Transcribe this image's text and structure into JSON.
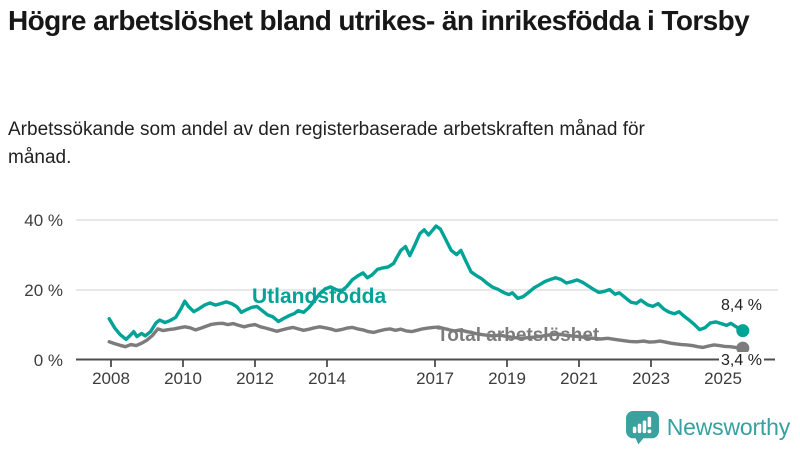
{
  "header": {
    "title": "Högre arbetslöshet bland utrikes- än inrikesfödda i Torsby",
    "subtitle": "Arbetssökande som andel av den registerbaserade arbetskraften månad för månad."
  },
  "chart_data": {
    "type": "line",
    "title": "Högre arbetslöshet bland utrikes- än inrikesfödda i Torsby",
    "xlabel": "",
    "ylabel": "",
    "grid": "horizontal",
    "legend_position": "inline-annotations",
    "x_axis": {
      "range": [
        2007.9,
        2026.3
      ],
      "ticks": [
        {
          "year": 2008,
          "label": "2008"
        },
        {
          "year": 2010,
          "label": "2010"
        },
        {
          "year": 2012,
          "label": "2012"
        },
        {
          "year": 2014,
          "label": "2014"
        },
        {
          "year": 2017,
          "label": "2017"
        },
        {
          "year": 2019,
          "label": "2019"
        },
        {
          "year": 2021,
          "label": "2021"
        },
        {
          "year": 2023,
          "label": "2023"
        },
        {
          "year": 2025,
          "label": "2025"
        },
        {
          "year": 2026,
          "label": ""
        }
      ]
    },
    "y_axis": {
      "range": [
        0,
        42
      ],
      "ticks": [
        {
          "value": 0,
          "label": "0 %"
        },
        {
          "value": 20,
          "label": "20 %"
        },
        {
          "value": 40,
          "label": "40 %"
        }
      ]
    },
    "series": [
      {
        "name": "Utlandsfödda",
        "color": "#00a396",
        "end_label": "8,4 %",
        "end_value": 8.4,
        "points": [
          [
            2007.95,
            11.8
          ],
          [
            2008.1,
            9.2
          ],
          [
            2008.25,
            7.3
          ],
          [
            2008.42,
            5.9
          ],
          [
            2008.55,
            7.2
          ],
          [
            2008.63,
            8.1
          ],
          [
            2008.72,
            6.7
          ],
          [
            2008.85,
            7.6
          ],
          [
            2008.95,
            6.9
          ],
          [
            2009.1,
            8.1
          ],
          [
            2009.25,
            10.6
          ],
          [
            2009.35,
            11.4
          ],
          [
            2009.5,
            10.7
          ],
          [
            2009.65,
            11.3
          ],
          [
            2009.8,
            12.2
          ],
          [
            2009.95,
            14.8
          ],
          [
            2010.05,
            16.8
          ],
          [
            2010.15,
            15.3
          ],
          [
            2010.3,
            13.8
          ],
          [
            2010.45,
            14.7
          ],
          [
            2010.6,
            15.7
          ],
          [
            2010.75,
            16.3
          ],
          [
            2010.9,
            15.7
          ],
          [
            2011.05,
            16.1
          ],
          [
            2011.2,
            16.6
          ],
          [
            2011.35,
            16.1
          ],
          [
            2011.5,
            15.2
          ],
          [
            2011.62,
            13.6
          ],
          [
            2011.75,
            14.3
          ],
          [
            2011.9,
            15.0
          ],
          [
            2012.05,
            15.3
          ],
          [
            2012.2,
            14.1
          ],
          [
            2012.35,
            12.9
          ],
          [
            2012.5,
            12.3
          ],
          [
            2012.65,
            11.0
          ],
          [
            2012.8,
            11.9
          ],
          [
            2012.95,
            12.7
          ],
          [
            2013.1,
            13.3
          ],
          [
            2013.2,
            14.1
          ],
          [
            2013.35,
            13.6
          ],
          [
            2013.5,
            15.0
          ],
          [
            2013.65,
            16.9
          ],
          [
            2013.8,
            19.0
          ],
          [
            2013.95,
            20.3
          ],
          [
            2014.1,
            20.9
          ],
          [
            2014.25,
            20.1
          ],
          [
            2014.4,
            19.7
          ],
          [
            2014.55,
            21.0
          ],
          [
            2014.7,
            22.9
          ],
          [
            2014.85,
            24.0
          ],
          [
            2015.0,
            24.9
          ],
          [
            2015.12,
            23.5
          ],
          [
            2015.25,
            24.3
          ],
          [
            2015.4,
            25.9
          ],
          [
            2015.55,
            26.3
          ],
          [
            2015.7,
            26.6
          ],
          [
            2015.85,
            27.6
          ],
          [
            2015.95,
            29.5
          ],
          [
            2016.05,
            31.3
          ],
          [
            2016.18,
            32.4
          ],
          [
            2016.3,
            29.8
          ],
          [
            2016.45,
            33.1
          ],
          [
            2016.58,
            36.1
          ],
          [
            2016.7,
            37.2
          ],
          [
            2016.82,
            35.7
          ],
          [
            2016.92,
            36.9
          ],
          [
            2017.03,
            38.3
          ],
          [
            2017.15,
            37.4
          ],
          [
            2017.3,
            34.4
          ],
          [
            2017.45,
            31.3
          ],
          [
            2017.6,
            30.1
          ],
          [
            2017.72,
            31.3
          ],
          [
            2017.85,
            28.4
          ],
          [
            2018.0,
            25.2
          ],
          [
            2018.15,
            24.1
          ],
          [
            2018.3,
            23.2
          ],
          [
            2018.45,
            21.9
          ],
          [
            2018.6,
            20.8
          ],
          [
            2018.75,
            20.2
          ],
          [
            2018.9,
            19.3
          ],
          [
            2019.05,
            18.7
          ],
          [
            2019.15,
            19.2
          ],
          [
            2019.3,
            17.6
          ],
          [
            2019.45,
            18.1
          ],
          [
            2019.6,
            19.3
          ],
          [
            2019.75,
            20.6
          ],
          [
            2019.9,
            21.5
          ],
          [
            2020.05,
            22.4
          ],
          [
            2020.2,
            23.0
          ],
          [
            2020.35,
            23.5
          ],
          [
            2020.5,
            23.0
          ],
          [
            2020.65,
            22.0
          ],
          [
            2020.8,
            22.4
          ],
          [
            2020.95,
            22.9
          ],
          [
            2021.1,
            22.2
          ],
          [
            2021.25,
            21.2
          ],
          [
            2021.4,
            20.2
          ],
          [
            2021.55,
            19.3
          ],
          [
            2021.7,
            19.6
          ],
          [
            2021.85,
            20.1
          ],
          [
            2022.0,
            18.8
          ],
          [
            2022.12,
            19.2
          ],
          [
            2022.3,
            17.7
          ],
          [
            2022.45,
            16.5
          ],
          [
            2022.6,
            16.2
          ],
          [
            2022.72,
            17.1
          ],
          [
            2022.9,
            15.8
          ],
          [
            2023.05,
            15.3
          ],
          [
            2023.2,
            16.1
          ],
          [
            2023.35,
            14.6
          ],
          [
            2023.5,
            13.7
          ],
          [
            2023.65,
            13.2
          ],
          [
            2023.78,
            13.8
          ],
          [
            2023.9,
            12.7
          ],
          [
            2024.05,
            11.5
          ],
          [
            2024.2,
            10.2
          ],
          [
            2024.35,
            8.7
          ],
          [
            2024.5,
            9.2
          ],
          [
            2024.65,
            10.6
          ],
          [
            2024.8,
            10.9
          ],
          [
            2024.95,
            10.4
          ],
          [
            2025.1,
            9.9
          ],
          [
            2025.22,
            10.5
          ],
          [
            2025.35,
            9.6
          ],
          [
            2025.45,
            8.9
          ],
          [
            2025.55,
            8.4
          ]
        ]
      },
      {
        "name": "Total arbetslöshet",
        "color": "#7c7c7c",
        "end_label": "3,4 %",
        "end_value": 3.4,
        "points": [
          [
            2007.95,
            5.2
          ],
          [
            2008.1,
            4.7
          ],
          [
            2008.25,
            4.2
          ],
          [
            2008.4,
            3.8
          ],
          [
            2008.55,
            4.4
          ],
          [
            2008.7,
            4.1
          ],
          [
            2008.85,
            4.8
          ],
          [
            2009.0,
            5.7
          ],
          [
            2009.15,
            7.0
          ],
          [
            2009.3,
            8.9
          ],
          [
            2009.45,
            8.4
          ],
          [
            2009.6,
            8.7
          ],
          [
            2009.75,
            8.9
          ],
          [
            2009.9,
            9.2
          ],
          [
            2010.05,
            9.5
          ],
          [
            2010.2,
            9.2
          ],
          [
            2010.35,
            8.6
          ],
          [
            2010.5,
            9.1
          ],
          [
            2010.65,
            9.7
          ],
          [
            2010.8,
            10.2
          ],
          [
            2010.95,
            10.4
          ],
          [
            2011.1,
            10.5
          ],
          [
            2011.25,
            10.1
          ],
          [
            2011.4,
            10.4
          ],
          [
            2011.55,
            9.9
          ],
          [
            2011.7,
            9.5
          ],
          [
            2011.85,
            9.9
          ],
          [
            2012.0,
            10.1
          ],
          [
            2012.15,
            9.5
          ],
          [
            2012.3,
            9.1
          ],
          [
            2012.45,
            8.7
          ],
          [
            2012.6,
            8.2
          ],
          [
            2012.75,
            8.6
          ],
          [
            2012.9,
            9.0
          ],
          [
            2013.05,
            9.3
          ],
          [
            2013.2,
            8.9
          ],
          [
            2013.35,
            8.5
          ],
          [
            2013.5,
            8.8
          ],
          [
            2013.65,
            9.2
          ],
          [
            2013.8,
            9.5
          ],
          [
            2013.95,
            9.2
          ],
          [
            2014.1,
            8.9
          ],
          [
            2014.25,
            8.4
          ],
          [
            2014.4,
            8.7
          ],
          [
            2014.55,
            9.1
          ],
          [
            2014.7,
            9.3
          ],
          [
            2014.85,
            8.9
          ],
          [
            2015.0,
            8.6
          ],
          [
            2015.15,
            8.1
          ],
          [
            2015.3,
            7.9
          ],
          [
            2015.45,
            8.3
          ],
          [
            2015.6,
            8.7
          ],
          [
            2015.75,
            8.9
          ],
          [
            2015.9,
            8.5
          ],
          [
            2016.05,
            8.8
          ],
          [
            2016.2,
            8.3
          ],
          [
            2016.35,
            8.1
          ],
          [
            2016.5,
            8.5
          ],
          [
            2016.65,
            8.9
          ],
          [
            2016.8,
            9.1
          ],
          [
            2016.95,
            9.3
          ],
          [
            2017.1,
            9.4
          ],
          [
            2017.25,
            9.0
          ],
          [
            2017.4,
            8.6
          ],
          [
            2017.55,
            8.3
          ],
          [
            2017.7,
            8.6
          ],
          [
            2017.85,
            8.2
          ],
          [
            2018.0,
            7.9
          ],
          [
            2018.2,
            7.4
          ],
          [
            2018.4,
            7.1
          ],
          [
            2018.6,
            6.9
          ],
          [
            2018.8,
            7.1
          ],
          [
            2019.0,
            6.7
          ],
          [
            2019.2,
            6.4
          ],
          [
            2019.4,
            6.2
          ],
          [
            2019.6,
            6.4
          ],
          [
            2019.8,
            6.6
          ],
          [
            2020.0,
            6.9
          ],
          [
            2020.2,
            7.2
          ],
          [
            2020.4,
            7.4
          ],
          [
            2020.6,
            7.1
          ],
          [
            2020.8,
            6.9
          ],
          [
            2021.0,
            6.7
          ],
          [
            2021.2,
            6.4
          ],
          [
            2021.4,
            6.2
          ],
          [
            2021.6,
            6.0
          ],
          [
            2021.8,
            6.2
          ],
          [
            2022.0,
            5.9
          ],
          [
            2022.2,
            5.6
          ],
          [
            2022.4,
            5.3
          ],
          [
            2022.6,
            5.2
          ],
          [
            2022.8,
            5.4
          ],
          [
            2022.95,
            5.1
          ],
          [
            2023.1,
            5.2
          ],
          [
            2023.25,
            5.4
          ],
          [
            2023.4,
            5.1
          ],
          [
            2023.55,
            4.8
          ],
          [
            2023.7,
            4.6
          ],
          [
            2023.85,
            4.4
          ],
          [
            2024.0,
            4.3
          ],
          [
            2024.15,
            4.1
          ],
          [
            2024.3,
            3.8
          ],
          [
            2024.45,
            3.6
          ],
          [
            2024.6,
            4.0
          ],
          [
            2024.75,
            4.3
          ],
          [
            2024.9,
            4.1
          ],
          [
            2025.05,
            3.9
          ],
          [
            2025.2,
            3.8
          ],
          [
            2025.35,
            3.6
          ],
          [
            2025.45,
            3.5
          ],
          [
            2025.55,
            3.4
          ]
        ]
      }
    ]
  },
  "footer": {
    "brand": "Newsworthy"
  },
  "colors": {
    "accent_teal": "#00a396",
    "series_gray": "#7c7c7c",
    "grid": "#dadada",
    "axis": "#4d4d4d",
    "tick_text": "#3d3d3d",
    "logo_teal": "#3ba19e"
  }
}
